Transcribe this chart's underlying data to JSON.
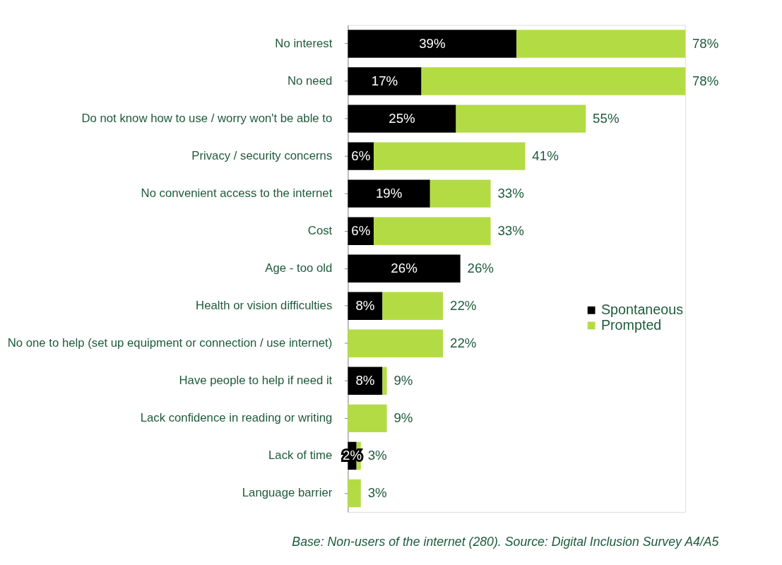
{
  "chart_data": {
    "type": "bar",
    "orientation": "horizontal",
    "stacked": true,
    "categories": [
      "No interest",
      "No need",
      "Do not know how to use / worry won't be able to",
      "Privacy / security concerns",
      "No convenient access to the internet",
      "Cost",
      "Age - too old",
      "Health or vision difficulties",
      "No one to help (set up equipment or connection / use internet)",
      "Have people to help if need it",
      "Lack confidence in reading or writing",
      "Lack of time",
      "Language barrier"
    ],
    "series": [
      {
        "name": "Spontaneous",
        "color": "#000000",
        "values": [
          39,
          17,
          25,
          6,
          19,
          6,
          26,
          8,
          0,
          8,
          0,
          2,
          0
        ],
        "value_labels": [
          "39%",
          "17%",
          "25%",
          "6%",
          "19%",
          "6%",
          "26%",
          "8%",
          null,
          "8%",
          null,
          "2%",
          null
        ]
      },
      {
        "name": "Prompted",
        "color": "#b3dc44",
        "values": [
          39,
          61,
          30,
          35,
          14,
          27,
          0,
          14,
          22,
          1,
          9,
          1,
          3
        ]
      }
    ],
    "totals": [
      "78%",
      "78%",
      "55%",
      "41%",
      "33%",
      "33%",
      "26%",
      "22%",
      "22%",
      "9%",
      "9%",
      "3%",
      "3%"
    ],
    "legend": "right",
    "annotations": [
      "Base: Non-users of the internet (280). Source: Digital Inclusion Survey A4/A5"
    ]
  }
}
